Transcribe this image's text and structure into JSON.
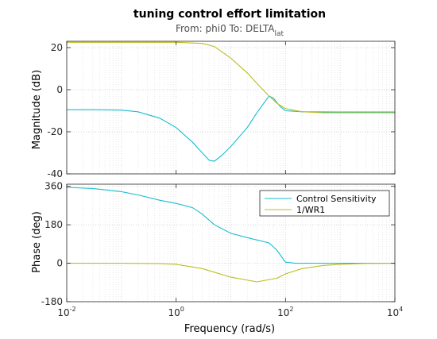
{
  "chart_data": {
    "type": "line",
    "title": "tuning control effort limitation",
    "subtitle": {
      "prefix": "From: phi0  To: DELTA",
      "subscript": "lat"
    },
    "xlabel": "Frequency  (rad/s)",
    "xscale": "log",
    "xlim": [
      0.01,
      10000
    ],
    "x_ticks": [
      {
        "base": "10",
        "exp": "-2",
        "value": 0.01
      },
      {
        "base": "10",
        "exp": "0",
        "value": 1
      },
      {
        "base": "10",
        "exp": "2",
        "value": 100
      },
      {
        "base": "10",
        "exp": "4",
        "value": 10000
      }
    ],
    "grid": true,
    "legend_position": "top-right (phase panel)",
    "legend": [
      "Control Sensitivity",
      "1/WR1"
    ],
    "colors": {
      "Control Sensitivity": "#17becf",
      "1/WR1": "#bcbd22"
    },
    "panels": [
      {
        "name": "magnitude",
        "ylabel": "Magnitude (dB)",
        "ylim": [
          -40,
          23
        ],
        "yticks": [
          -40,
          -20,
          0,
          20
        ],
        "series": [
          {
            "name": "Control Sensitivity",
            "x": [
              0.01,
              0.03,
              0.1,
              0.2,
              0.5,
              1,
              2,
              3,
              4,
              5,
              7,
              10,
              20,
              30,
              50,
              60,
              80,
              100,
              200,
              1000,
              10000
            ],
            "y": [
              -9.5,
              -9.5,
              -9.7,
              -10.5,
              -13.5,
              -18,
              -25,
              -30,
              -33.5,
              -34,
              -31,
              -27,
              -18,
              -11,
              -3,
              -4,
              -8,
              -10,
              -10.5,
              -10.6,
              -10.6
            ]
          },
          {
            "name": "1/WR1",
            "x": [
              0.01,
              0.1,
              1,
              3,
              5,
              10,
              20,
              30,
              50,
              70,
              100,
              200,
              500,
              1000,
              10000
            ],
            "y": [
              22.5,
              22.5,
              22.5,
              22,
              20.5,
              15,
              8,
              3,
              -3,
              -6.5,
              -9,
              -10.5,
              -11,
              -11,
              -11
            ]
          }
        ]
      },
      {
        "name": "phase",
        "ylabel": "Phase (deg)",
        "ylim": [
          -180,
          370
        ],
        "yticks": [
          -180,
          0,
          180,
          360
        ],
        "series": [
          {
            "name": "Control Sensitivity",
            "x": [
              0.01,
              0.03,
              0.1,
              0.2,
              0.5,
              1,
              2,
              3,
              5,
              10,
              20,
              50,
              70,
              100,
              150,
              200,
              500,
              1000,
              10000
            ],
            "y": [
              355,
              350,
              335,
              320,
              295,
              280,
              260,
              230,
              180,
              140,
              120,
              95,
              60,
              5,
              0,
              0,
              0,
              0,
              0
            ]
          },
          {
            "name": "1/WR1",
            "x": [
              0.01,
              0.1,
              0.5,
              1,
              3,
              10,
              30,
              70,
              100,
              200,
              500,
              1000,
              3000,
              10000
            ],
            "y": [
              0,
              0,
              -2,
              -5,
              -25,
              -65,
              -87,
              -70,
              -50,
              -25,
              -10,
              -5,
              -1,
              0
            ]
          }
        ]
      }
    ]
  }
}
